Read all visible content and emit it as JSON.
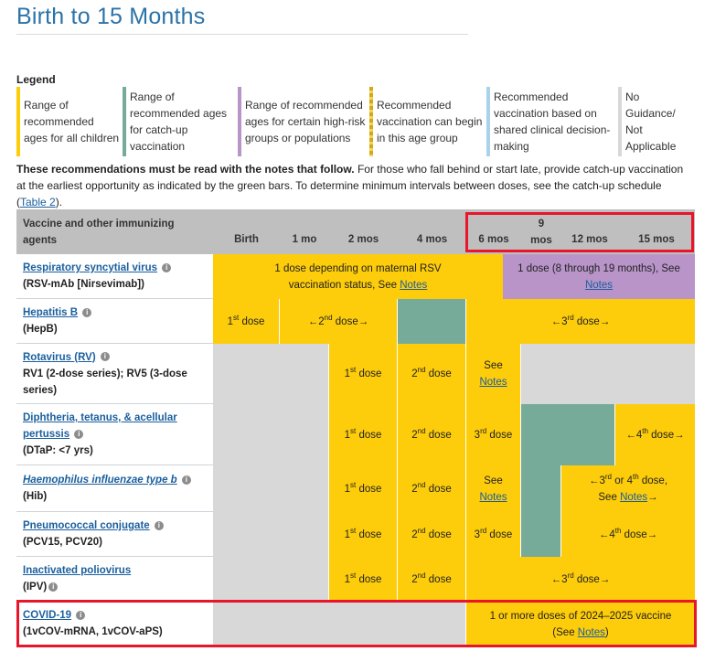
{
  "page": {
    "title": "Birth to 15 Months"
  },
  "legend": {
    "title": "Legend",
    "items": [
      {
        "label": "Range of recommended ages for all children",
        "color": "#fdcc0a"
      },
      {
        "label": "Range of recommended ages for catch-up vaccination",
        "color": "#76ab9a"
      },
      {
        "label": "Range of recommended ages for certain high-risk groups or populations",
        "color": "#b894c8"
      },
      {
        "label": "Recommended vaccination can begin in this age group",
        "color": "#d4a714"
      },
      {
        "label": "Recommended vaccination based on shared clinical decision-making",
        "color": "#a8d3ea"
      },
      {
        "label": "No Guidance/ Not Applicable",
        "color": "#d8d8d8"
      }
    ]
  },
  "intro": {
    "bold": "These recommendations must be read with the notes that follow.",
    "text": " For those who fall behind or start late, provide catch-up vaccination at the earliest opportunity as indicated by the green bars. To determine minimum intervals between doses, see the catch-up schedule (",
    "link": "Table 2",
    "end": ")."
  },
  "table": {
    "header": {
      "vaccine_col": "Vaccine and other immunizing agents",
      "ages": [
        "Birth",
        "1 mo",
        "2 mos",
        "4 mos",
        "6 mos",
        "9 mos",
        "12 mos",
        "15 mos"
      ],
      "nine_top": "9",
      "nine_bottom": "mos"
    },
    "notes_link": "Notes",
    "rows": {
      "rsv": {
        "name": "Respiratory syncytial virus",
        "sub": "(RSV-mAb [Nirsevimab])",
        "yellow_text": "1 dose depending on maternal RSV vaccination status, See",
        "purple_text": "1 dose (8 through 19 months), See"
      },
      "hepb": {
        "name": "Hepatitis B",
        "sub": "(HepB)",
        "d1": "1st dose",
        "d2": "←2nd dose→",
        "d3": "←3rd dose→"
      },
      "rv": {
        "name": "Rotavirus (RV)",
        "sub": "RV1 (2-dose series); RV5 (3-dose series)",
        "d1": "1st dose",
        "d2": "2nd dose",
        "see": "See"
      },
      "dtap": {
        "name": "Diphtheria, tetanus, & acellular pertussis",
        "sub": "(DTaP: <7 yrs)",
        "d1": "1st dose",
        "d2": "2nd dose",
        "d3": "3rd dose",
        "d4": "←4th dose→"
      },
      "hib": {
        "name": "Haemophilus influenzae type b",
        "sub": "(Hib)",
        "d1": "1st dose",
        "d2": "2nd dose",
        "see": "See",
        "d34": "←3rd or 4th dose,",
        "see2": "See"
      },
      "pcv": {
        "name": "Pneumococcal conjugate",
        "sub": "(PCV15, PCV20)",
        "d1": "1st dose",
        "d2": "2nd dose",
        "d3": "3rd dose",
        "d4": "←4th dose→"
      },
      "ipv": {
        "name": "Inactivated poliovirus",
        "sub": "(IPV)",
        "d1": "1st dose",
        "d2": "2nd dose",
        "d3": "←3rd dose→"
      },
      "covid": {
        "name": "COVID-19",
        "sub": "(1vCOV-mRNA, 1vCOV-aPS)",
        "text": "1 or more doses of 2024–2025 vaccine",
        "see": "(See",
        "close": ")"
      }
    }
  }
}
